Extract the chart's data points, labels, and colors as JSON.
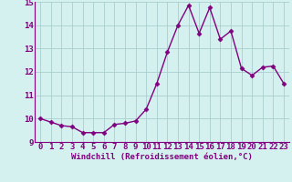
{
  "x": [
    0,
    1,
    2,
    3,
    4,
    5,
    6,
    7,
    8,
    9,
    10,
    11,
    12,
    13,
    14,
    15,
    16,
    17,
    18,
    19,
    20,
    21,
    22,
    23
  ],
  "y": [
    10.0,
    9.85,
    9.7,
    9.65,
    9.4,
    9.4,
    9.4,
    9.75,
    9.8,
    9.9,
    10.4,
    11.5,
    12.85,
    14.0,
    14.85,
    13.65,
    14.75,
    13.4,
    13.75,
    12.15,
    11.85,
    12.2,
    12.25,
    11.5
  ],
  "line_color": "#800080",
  "marker": "D",
  "marker_size": 2.5,
  "bg_color": "#d4f0ef",
  "grid_color": "#aacfcf",
  "xlabel": "Windchill (Refroidissement éolien,°C)",
  "ylim": [
    9.0,
    15.0
  ],
  "xlim_min": -0.5,
  "xlim_max": 23.5,
  "yticks": [
    9,
    10,
    11,
    12,
    13,
    14,
    15
  ],
  "xticks": [
    0,
    1,
    2,
    3,
    4,
    5,
    6,
    7,
    8,
    9,
    10,
    11,
    12,
    13,
    14,
    15,
    16,
    17,
    18,
    19,
    20,
    21,
    22,
    23
  ],
  "xlabel_fontsize": 6.5,
  "tick_fontsize": 6.5,
  "line_width": 1.0,
  "marker_color": "#800080"
}
